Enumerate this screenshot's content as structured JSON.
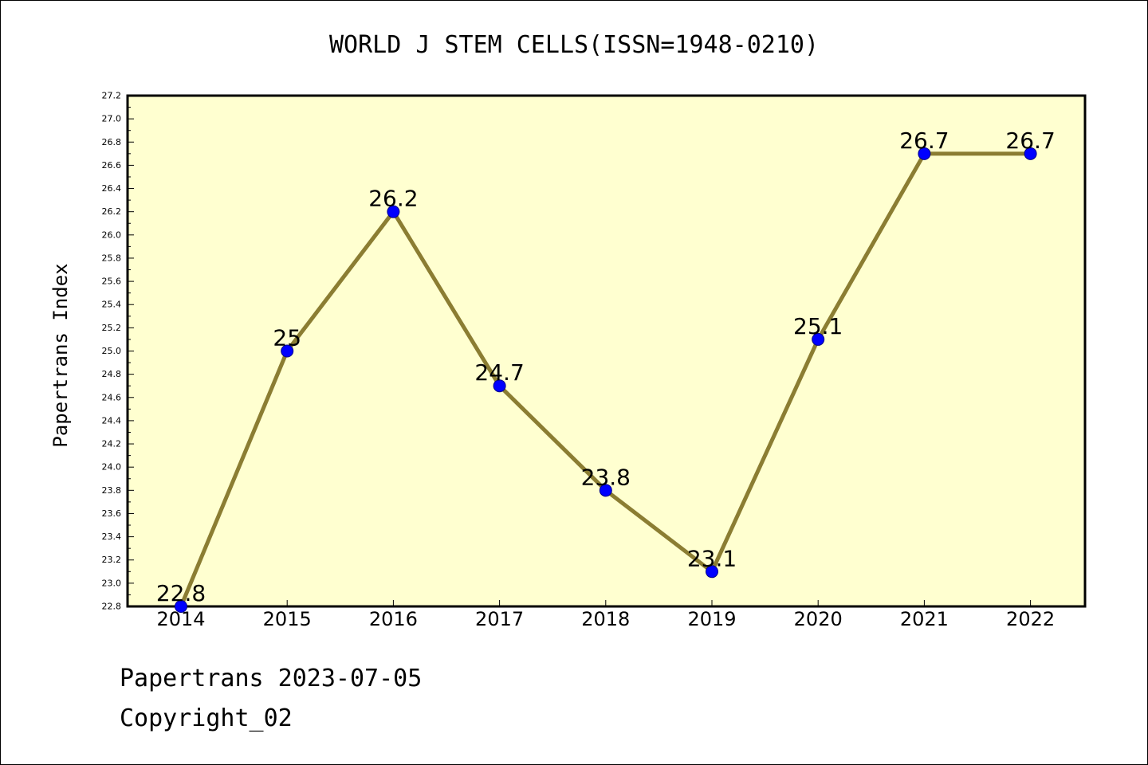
{
  "chart_data": {
    "type": "line",
    "title": "WORLD J STEM CELLS(ISSN=1948-0210)",
    "ylabel": "Papertrans Index",
    "xlabel": "",
    "categories": [
      "2014",
      "2015",
      "2016",
      "2017",
      "2018",
      "2019",
      "2020",
      "2021",
      "2022"
    ],
    "series": [
      {
        "values": [
          22.8,
          25.0,
          26.2,
          24.7,
          23.8,
          23.1,
          25.1,
          26.7,
          26.7
        ],
        "labels": [
          "22.8",
          "25",
          "26.2",
          "24.7",
          "23.8",
          "23.1",
          "25.1",
          "26.7",
          "26.7"
        ]
      }
    ],
    "ylim": [
      22.8,
      27.2
    ],
    "yticks": [
      "22.8",
      "23.0",
      "23.2",
      "23.4",
      "23.6",
      "23.8",
      "24.0",
      "24.2",
      "24.4",
      "24.6",
      "24.8",
      "25.0",
      "25.2",
      "25.4",
      "25.6",
      "25.8",
      "26.0",
      "26.2",
      "26.4",
      "26.6",
      "26.8",
      "27.0",
      "27.2"
    ],
    "grid": false,
    "colors": {
      "plot_background": "#ffffd0",
      "line": "#8b7d32",
      "marker": "#0000ff"
    }
  },
  "footer": {
    "line1": "Papertrans 2023-07-05",
    "line2": "Copyright_02"
  }
}
